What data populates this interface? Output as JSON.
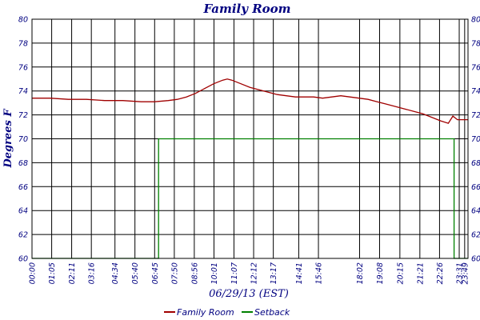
{
  "chart_data": {
    "type": "line",
    "title": "Family Room",
    "xlabel": "06/29/13 (EST)",
    "ylabel": "Degrees F",
    "ylim": [
      60,
      80
    ],
    "yticks": [
      60,
      62,
      64,
      66,
      68,
      70,
      72,
      74,
      76,
      78,
      80
    ],
    "x_range_minutes": [
      0,
      1440
    ],
    "xticks": [
      "00:00",
      "01:05",
      "02:11",
      "03:16",
      "04:34",
      "05:40",
      "06:45",
      "07:50",
      "08:56",
      "10:01",
      "11:07",
      "12:12",
      "13:17",
      "14:41",
      "15:46",
      "18:02",
      "19:08",
      "20:15",
      "21:21",
      "22:26",
      "23:31",
      "23:49"
    ],
    "grid": true,
    "legend_position": "bottom",
    "series": [
      {
        "name": "Family Room",
        "color": "#a00000",
        "x": [
          "00:00",
          "01:00",
          "02:00",
          "03:00",
          "04:00",
          "05:00",
          "06:00",
          "06:45",
          "07:30",
          "08:00",
          "08:30",
          "09:00",
          "09:30",
          "10:00",
          "10:30",
          "10:45",
          "11:00",
          "11:30",
          "12:00",
          "12:30",
          "13:00",
          "13:30",
          "14:00",
          "14:30",
          "15:00",
          "15:30",
          "16:00",
          "16:30",
          "17:00",
          "17:30",
          "18:00",
          "18:30",
          "19:00",
          "19:30",
          "20:00",
          "20:30",
          "21:00",
          "21:30",
          "22:00",
          "22:30",
          "22:55",
          "23:10",
          "23:25",
          "23:40",
          "23:59"
        ],
        "values": [
          73.4,
          73.4,
          73.3,
          73.3,
          73.2,
          73.2,
          73.1,
          73.1,
          73.2,
          73.3,
          73.5,
          73.8,
          74.2,
          74.6,
          74.9,
          75.0,
          74.9,
          74.6,
          74.3,
          74.1,
          73.9,
          73.7,
          73.6,
          73.5,
          73.5,
          73.5,
          73.4,
          73.5,
          73.6,
          73.5,
          73.4,
          73.3,
          73.1,
          72.9,
          72.7,
          72.5,
          72.3,
          72.1,
          71.8,
          71.5,
          71.3,
          71.9,
          71.6,
          71.6,
          71.6
        ]
      },
      {
        "name": "Setback",
        "color": "#008000",
        "x": [
          "00:00",
          "06:58",
          "06:58",
          "23:14",
          "23:14",
          "23:59"
        ],
        "values": [
          60,
          60,
          70,
          70,
          60,
          60
        ]
      }
    ]
  }
}
